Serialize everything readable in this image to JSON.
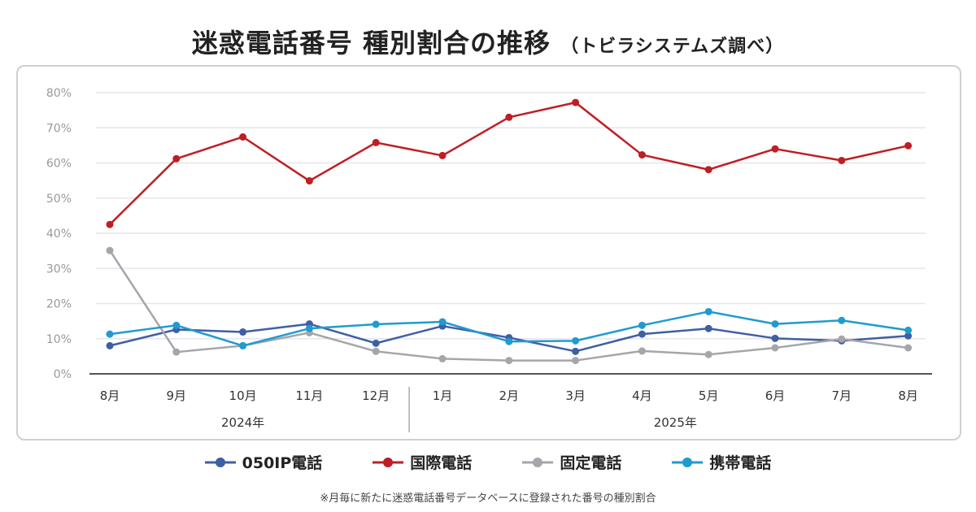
{
  "title": {
    "main": "迷惑電話番号 種別割合の推移",
    "sub": "（トビラシステムズ調べ）"
  },
  "footnote": "※月毎に新たに迷惑電話番号データベースに登録された番号の種別割合",
  "chart_data": {
    "type": "line",
    "title": "迷惑電話番号 種別割合の推移",
    "categories": [
      "8月",
      "9月",
      "10月",
      "11月",
      "12月",
      "1月",
      "2月",
      "3月",
      "4月",
      "5月",
      "6月",
      "7月",
      "8月"
    ],
    "year_groups": [
      {
        "label": "2024年",
        "span": 5
      },
      {
        "label": "2025年",
        "span": 8
      }
    ],
    "ylim": [
      0,
      80
    ],
    "yticks": [
      "0%",
      "10%",
      "20%",
      "30%",
      "40%",
      "50%",
      "60%",
      "70%",
      "80%"
    ],
    "grid": true,
    "legend_position": "bottom",
    "series": [
      {
        "name": "050IP電話",
        "color": "#3f5fa3",
        "values": [
          8.0,
          12.6,
          11.9,
          14.2,
          8.7,
          13.6,
          10.3,
          6.4,
          11.3,
          12.9,
          10.1,
          9.4,
          10.8
        ]
      },
      {
        "name": "国際電話",
        "color": "#bf1e24",
        "values": [
          42.5,
          61.2,
          67.4,
          54.9,
          65.8,
          62.1,
          73.0,
          77.2,
          62.3,
          58.1,
          64.0,
          60.7,
          64.9
        ]
      },
      {
        "name": "固定電話",
        "color": "#a6a6aa",
        "values": [
          35.1,
          6.2,
          8.0,
          11.7,
          6.4,
          4.3,
          3.8,
          3.8,
          6.5,
          5.5,
          7.4,
          9.9,
          7.4
        ]
      },
      {
        "name": "携帯電話",
        "color": "#1f9bcf",
        "values": [
          11.3,
          13.8,
          8.0,
          12.9,
          14.1,
          14.8,
          9.2,
          9.4,
          13.8,
          17.7,
          14.2,
          15.2,
          12.4
        ]
      }
    ]
  }
}
